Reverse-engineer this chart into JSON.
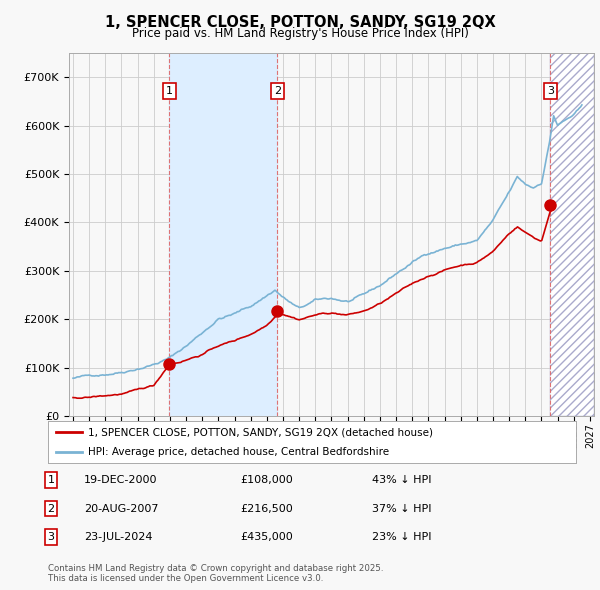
{
  "title": "1, SPENCER CLOSE, POTTON, SANDY, SG19 2QX",
  "subtitle": "Price paid vs. HM Land Registry's House Price Index (HPI)",
  "hpi_color": "#7ab3d4",
  "price_color": "#cc0000",
  "bg_color": "#f8f8f8",
  "grid_color": "#cccccc",
  "shade_color": "#ddeeff",
  "hatch_color": "#bbbbcc",
  "sale_marker_color": "#cc0000",
  "sale_vline_color": "#dd6666",
  "ylim": [
    0,
    750000
  ],
  "yticks": [
    0,
    100000,
    200000,
    300000,
    400000,
    500000,
    600000,
    700000
  ],
  "ytick_labels": [
    "£0",
    "£100K",
    "£200K",
    "£300K",
    "£400K",
    "£500K",
    "£600K",
    "£700K"
  ],
  "xlim_start": 1994.75,
  "xlim_end": 2027.25,
  "sales": [
    {
      "num": 1,
      "year": 2000.97,
      "price": 108000,
      "date": "19-DEC-2000",
      "label": "£108,000",
      "pct": "43%"
    },
    {
      "num": 2,
      "year": 2007.64,
      "price": 216500,
      "date": "20-AUG-2007",
      "label": "£216,500",
      "pct": "37%"
    },
    {
      "num": 3,
      "year": 2024.55,
      "price": 435000,
      "date": "23-JUL-2024",
      "label": "£435,000",
      "pct": "23%"
    }
  ],
  "legend_line1": "1, SPENCER CLOSE, POTTON, SANDY, SG19 2QX (detached house)",
  "legend_line2": "HPI: Average price, detached house, Central Bedfordshire",
  "footer": "Contains HM Land Registry data © Crown copyright and database right 2025.\nThis data is licensed under the Open Government Licence v3.0.",
  "shade1_start": 2000.97,
  "shade1_end": 2007.64,
  "future_shade_start": 2024.55,
  "future_shade_end": 2027.25
}
